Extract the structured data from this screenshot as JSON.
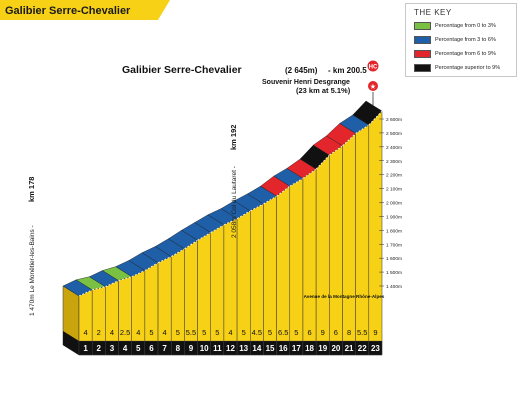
{
  "header": {
    "title": "Galibier Serre-Chevalier"
  },
  "key": {
    "title": "THE KEY",
    "items": [
      {
        "label": "Percentage from 0 to 3%",
        "color": "#7ac143"
      },
      {
        "label": "Percentage from 3 to 6%",
        "color": "#1f5fa8"
      },
      {
        "label": "Percentage from 6 to 9%",
        "color": "#e2262b"
      },
      {
        "label": "Percentage superior to 9%",
        "color": "#111111"
      }
    ]
  },
  "chart_data": {
    "type": "area",
    "title": "Galibier Serre-Chevalier",
    "xlabel": "",
    "ylabel": "",
    "km_labels": [
      "1",
      "2",
      "3",
      "4",
      "5",
      "6",
      "7",
      "8",
      "9",
      "10",
      "11",
      "12",
      "13",
      "14",
      "15",
      "16",
      "17",
      "18",
      "19",
      "20",
      "21",
      "22",
      "23"
    ],
    "gradients": [
      4,
      2,
      4,
      2.5,
      4,
      5,
      4,
      5,
      5.5,
      5,
      5,
      4,
      5,
      4.5,
      5,
      6.5,
      5,
      6,
      9,
      6,
      8,
      5.5,
      9
    ],
    "gradient_labels": [
      "4",
      "2",
      "4",
      "2.5",
      "4",
      "5",
      "4",
      "5",
      "5.5",
      "5",
      "5",
      "4",
      "5",
      "4.5",
      "5",
      "6.5",
      "5",
      "6",
      "9",
      "6",
      "8",
      "5.5",
      "9"
    ],
    "elevation_ticks": [
      "1 400m",
      "1 500m",
      "1 600m",
      "1 700m",
      "1 800m",
      "1 900m",
      "2 000m",
      "2 100m",
      "2 200m",
      "2 300m",
      "2 400m",
      "2 500m",
      "2 600m"
    ],
    "legend": "top-right",
    "annotations": {
      "summit_name": "Galibier Serre-Chevalier",
      "summit_alt": "(2 645m)",
      "summit_km": "- km 200.5",
      "summit_sub1": "Souvenir Henri Desgrange",
      "summit_sub2": "(23 km at 5.1%)",
      "start_label": "1 470m Le Monêtier-les-Bains -",
      "start_km": "km 178",
      "mid_label": "2 058m Col du Lautaret -",
      "mid_km": "km 192",
      "footer_text": "Avenue de la Montagne Rhône-Alpes"
    }
  }
}
